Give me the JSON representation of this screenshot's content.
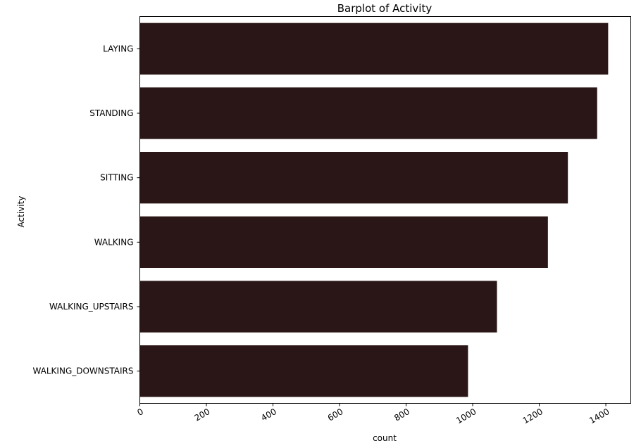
{
  "chart_data": {
    "type": "bar",
    "orientation": "horizontal",
    "title": "Barplot of Activity",
    "xlabel": "count",
    "ylabel": "Activity",
    "categories": [
      "LAYING",
      "STANDING",
      "SITTING",
      "WALKING",
      "WALKING_UPSTAIRS",
      "WALKING_DOWNSTAIRS"
    ],
    "values": [
      1407,
      1374,
      1286,
      1226,
      1073,
      986
    ],
    "xlim": [
      0,
      1475
    ],
    "xticks": [
      0,
      200,
      400,
      600,
      800,
      1000,
      1200,
      1400
    ],
    "bar_color": "#2a1616",
    "grid": false,
    "legend": false
  }
}
